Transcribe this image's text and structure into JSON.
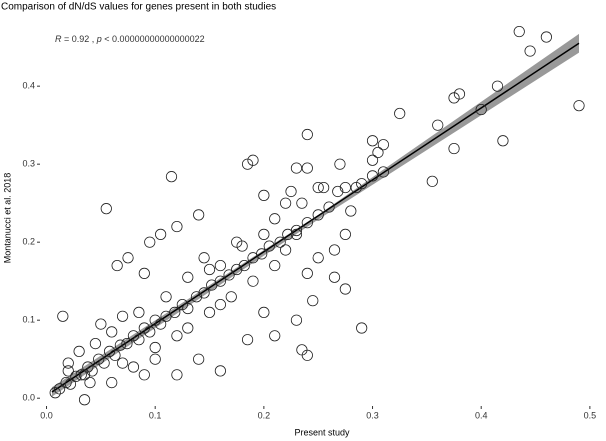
{
  "chart_data": {
    "type": "scatter",
    "title": "Comparison of dN/dS values for genes present in both studies",
    "x_label": "Present study",
    "y_label": "Montanucci et al. 2018",
    "annotation": [
      "R",
      " = 0.92 , ",
      "p",
      " < 0.00000000000000022"
    ],
    "xlim": [
      -0.006,
      0.513
    ],
    "ylim": [
      -0.01,
      0.472
    ],
    "xticks": [
      {
        "value": 0,
        "label": "0.0"
      },
      0.1,
      0.2,
      0.3,
      0.4,
      0.5
    ],
    "yticks": [
      {
        "value": 0,
        "label": "0.0"
      },
      0.1,
      0.2,
      0.3,
      0.4
    ],
    "points": {
      "color": "#222222",
      "x": [
        0.49,
        0.46,
        0.435,
        0.445,
        0.415,
        0.42,
        0.4,
        0.38,
        0.375,
        0.375,
        0.355,
        0.36,
        0.325,
        0.31,
        0.3,
        0.305,
        0.3,
        0.29,
        0.29,
        0.27,
        0.28,
        0.275,
        0.265,
        0.24,
        0.24,
        0.23,
        0.25,
        0.255,
        0.235,
        0.225,
        0.22,
        0.19,
        0.185,
        0.2,
        0.115,
        0.055,
        0.105,
        0.12,
        0.14,
        0.095,
        0.065,
        0.075,
        0.09,
        0.145,
        0.16,
        0.175,
        0.21,
        0.23,
        0.22,
        0.25,
        0.24,
        0.265,
        0.275,
        0.245,
        0.23,
        0.2,
        0.21,
        0.235,
        0.24,
        0.185,
        0.16,
        0.14,
        0.12,
        0.09,
        0.035,
        0.06,
        0.015,
        0.05,
        0.07,
        0.03,
        0.02,
        0.008,
        0.012,
        0.018,
        0.022,
        0.027,
        0.032,
        0.038,
        0.042,
        0.048,
        0.053,
        0.058,
        0.063,
        0.068,
        0.074,
        0.08,
        0.085,
        0.09,
        0.095,
        0.1,
        0.105,
        0.11,
        0.118,
        0.125,
        0.13,
        0.138,
        0.145,
        0.152,
        0.16,
        0.168,
        0.175,
        0.182,
        0.19,
        0.198,
        0.205,
        0.215,
        0.222,
        0.23,
        0.24,
        0.25,
        0.26,
        0.268,
        0.275,
        0.285,
        0.3,
        0.31,
        0.02,
        0.04,
        0.07,
        0.1,
        0.13,
        0.15,
        0.17,
        0.06,
        0.085,
        0.11,
        0.13,
        0.15,
        0.18,
        0.2,
        0.16,
        0.19,
        0.21,
        0.12,
        0.1,
        0.08,
        0.045,
        0.035
      ],
      "y": [
        0.375,
        0.463,
        0.47,
        0.445,
        0.4,
        0.33,
        0.37,
        0.39,
        0.385,
        0.32,
        0.278,
        0.35,
        0.365,
        0.325,
        0.33,
        0.315,
        0.305,
        0.275,
        0.09,
        0.3,
        0.24,
        0.21,
        0.19,
        0.338,
        0.295,
        0.295,
        0.27,
        0.27,
        0.25,
        0.265,
        0.25,
        0.305,
        0.3,
        0.26,
        0.284,
        0.243,
        0.21,
        0.22,
        0.235,
        0.2,
        0.17,
        0.18,
        0.16,
        0.18,
        0.17,
        0.2,
        0.23,
        0.21,
        0.19,
        0.18,
        0.16,
        0.155,
        0.14,
        0.125,
        0.1,
        0.11,
        0.08,
        0.062,
        0.055,
        0.075,
        0.035,
        0.05,
        0.03,
        0.03,
        -0.002,
        0.02,
        0.105,
        0.095,
        0.105,
        0.06,
        0.035,
        0.007,
        0.012,
        0.02,
        0.018,
        0.028,
        0.03,
        0.04,
        0.035,
        0.05,
        0.045,
        0.06,
        0.055,
        0.068,
        0.07,
        0.08,
        0.075,
        0.09,
        0.085,
        0.1,
        0.095,
        0.105,
        0.11,
        0.12,
        0.115,
        0.13,
        0.135,
        0.145,
        0.15,
        0.158,
        0.165,
        0.17,
        0.18,
        0.185,
        0.195,
        0.2,
        0.21,
        0.215,
        0.225,
        0.235,
        0.245,
        0.265,
        0.27,
        0.27,
        0.285,
        0.29,
        0.045,
        0.02,
        0.045,
        0.065,
        0.09,
        0.11,
        0.13,
        0.085,
        0.11,
        0.13,
        0.155,
        0.165,
        0.195,
        0.21,
        0.12,
        0.15,
        0.17,
        0.08,
        0.05,
        0.04,
        0.07,
        0.03
      ]
    },
    "fit": {
      "color": "#000000",
      "x": [
        0.005,
        0.49
      ],
      "y": [
        0.008,
        0.455
      ]
    },
    "band": {
      "color": "#999999",
      "x": [
        0.005,
        0.25,
        0.49
      ],
      "lower": [
        0.002,
        0.229,
        0.443
      ],
      "upper": [
        0.014,
        0.235,
        0.467
      ]
    }
  }
}
